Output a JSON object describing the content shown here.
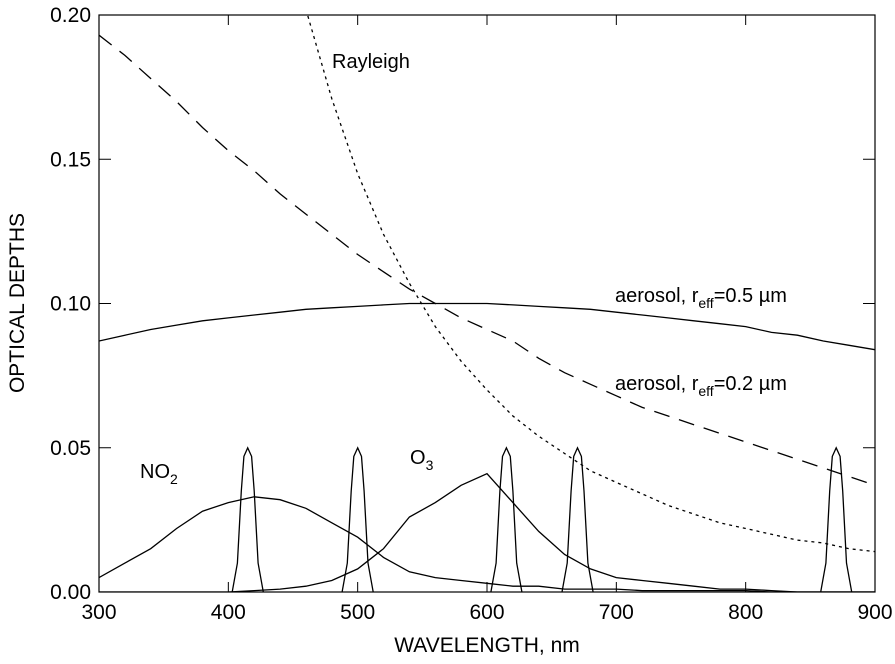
{
  "chart_data": {
    "type": "line",
    "xlabel": "WAVELENGTH, nm",
    "ylabel": "OPTICAL DEPTHS",
    "xlim": [
      300,
      900
    ],
    "xticks": [
      300,
      400,
      500,
      600,
      700,
      800,
      900
    ],
    "ylim": [
      0,
      0.2
    ],
    "yticks": [
      {
        "value": 0,
        "label": "0.00"
      },
      {
        "value": 0.05,
        "label": "0.05"
      },
      {
        "value": 0.1,
        "label": "0.10"
      },
      {
        "value": 0.15,
        "label": "0.15"
      },
      {
        "value": 0.2,
        "label": "0.20"
      }
    ],
    "x": [
      300,
      320,
      340,
      360,
      380,
      400,
      420,
      440,
      460,
      480,
      500,
      520,
      540,
      560,
      580,
      600,
      620,
      640,
      660,
      680,
      700,
      720,
      740,
      760,
      780,
      800,
      820,
      840,
      860,
      880,
      900
    ],
    "series": [
      {
        "label": {
          "main": "Rayleigh"
        },
        "color": "#000000",
        "dash": "dotted",
        "values": [
          null,
          null,
          null,
          null,
          null,
          null,
          null,
          null,
          0.202,
          0.171,
          0.145,
          0.124,
          0.107,
          0.092,
          0.08,
          0.07,
          0.061,
          0.054,
          0.048,
          0.042,
          0.038,
          0.034,
          0.03,
          0.027,
          0.024,
          0.022,
          0.02,
          0.018,
          0.017,
          0.015,
          0.014
        ]
      },
      {
        "label": {
          "main": "aerosol, r",
          "sub": "eff",
          "tail": "=0.5 µm"
        },
        "color": "#000000",
        "dash": "solid",
        "values": [
          0.087,
          0.089,
          0.091,
          0.0925,
          0.094,
          0.095,
          0.096,
          0.097,
          0.098,
          0.0985,
          0.099,
          0.0995,
          0.1,
          0.1,
          0.1,
          0.1,
          0.0995,
          0.099,
          0.0985,
          0.098,
          0.097,
          0.096,
          0.095,
          0.094,
          0.093,
          0.092,
          0.09,
          0.089,
          0.087,
          0.0855,
          0.084
        ]
      },
      {
        "label": {
          "main": "aerosol, r",
          "sub": "eff",
          "tail": "=0.2 µm"
        },
        "color": "#000000",
        "dash": "dashed",
        "values": [
          0.193,
          0.186,
          0.178,
          0.17,
          0.161,
          0.153,
          0.146,
          0.138,
          0.131,
          0.124,
          0.117,
          0.111,
          0.105,
          0.1,
          0.095,
          0.091,
          0.087,
          0.081,
          0.076,
          0.072,
          0.068,
          0.064,
          0.061,
          0.058,
          0.055,
          0.052,
          0.049,
          0.046,
          0.043,
          0.04,
          0.037
        ]
      },
      {
        "label": {
          "main": "NO",
          "sub": "2"
        },
        "color": "#000000",
        "dash": "solid",
        "values": [
          0.005,
          0.01,
          0.015,
          0.022,
          0.028,
          0.031,
          0.033,
          0.032,
          0.029,
          0.024,
          0.019,
          0.012,
          0.007,
          0.005,
          0.004,
          0.003,
          0.002,
          0.002,
          0.001,
          0.001,
          0.001,
          0.0005,
          0.0005,
          0.0005,
          0.0005,
          0.0005,
          0,
          0,
          0,
          0,
          0
        ]
      },
      {
        "label": {
          "main": "O",
          "sub": "3"
        },
        "color": "#000000",
        "dash": "solid",
        "values": [
          0,
          0,
          0,
          0,
          0,
          0,
          0.0005,
          0.001,
          0.002,
          0.004,
          0.008,
          0.015,
          0.026,
          0.031,
          0.037,
          0.041,
          0.031,
          0.021,
          0.013,
          0.008,
          0.005,
          0.004,
          0.003,
          0.002,
          0.001,
          0.001,
          0.0005,
          0,
          0,
          0,
          0
        ]
      },
      {
        "color": "#000000",
        "dash": "solid",
        "x": [
          403,
          407,
          410,
          412,
          415,
          418,
          420,
          423,
          427
        ],
        "values": [
          0,
          0.01,
          0.035,
          0.047,
          0.05,
          0.047,
          0.035,
          0.01,
          0
        ]
      },
      {
        "color": "#000000",
        "dash": "solid",
        "x": [
          488,
          492,
          495,
          497,
          500,
          503,
          505,
          508,
          512
        ],
        "values": [
          0,
          0.01,
          0.035,
          0.047,
          0.05,
          0.047,
          0.035,
          0.01,
          0
        ]
      },
      {
        "color": "#000000",
        "dash": "solid",
        "x": [
          603,
          607,
          610,
          612,
          615,
          618,
          620,
          623,
          627
        ],
        "values": [
          0,
          0.01,
          0.035,
          0.047,
          0.05,
          0.047,
          0.035,
          0.01,
          0
        ]
      },
      {
        "color": "#000000",
        "dash": "solid",
        "x": [
          658,
          662,
          665,
          667,
          670,
          673,
          675,
          678,
          682
        ],
        "values": [
          0,
          0.01,
          0.035,
          0.047,
          0.05,
          0.047,
          0.035,
          0.01,
          0
        ]
      },
      {
        "color": "#000000",
        "dash": "solid",
        "x": [
          858,
          862,
          865,
          867,
          870,
          873,
          875,
          878,
          882
        ],
        "values": [
          0,
          0.01,
          0.035,
          0.047,
          0.05,
          0.047,
          0.035,
          0.01,
          0
        ]
      }
    ]
  }
}
